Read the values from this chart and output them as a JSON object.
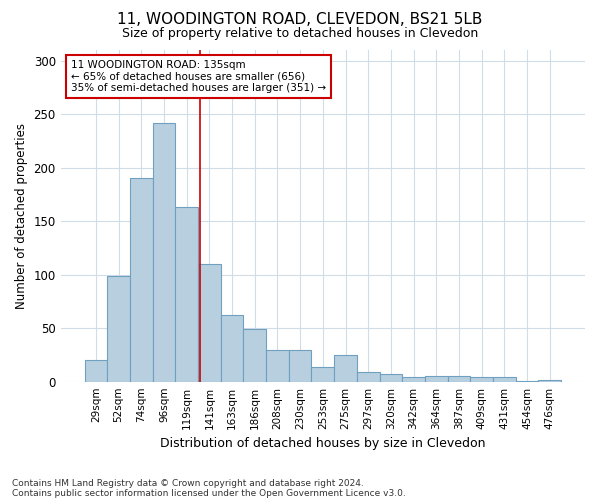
{
  "title_line1": "11, WOODINGTON ROAD, CLEVEDON, BS21 5LB",
  "title_line2": "Size of property relative to detached houses in Clevedon",
  "xlabel": "Distribution of detached houses by size in Clevedon",
  "ylabel": "Number of detached properties",
  "categories": [
    "29sqm",
    "52sqm",
    "74sqm",
    "96sqm",
    "119sqm",
    "141sqm",
    "163sqm",
    "186sqm",
    "208sqm",
    "230sqm",
    "253sqm",
    "275sqm",
    "297sqm",
    "320sqm",
    "342sqm",
    "364sqm",
    "387sqm",
    "409sqm",
    "431sqm",
    "454sqm",
    "476sqm"
  ],
  "values": [
    20,
    99,
    190,
    242,
    163,
    110,
    62,
    49,
    30,
    30,
    14,
    25,
    9,
    7,
    4,
    5,
    5,
    4,
    4,
    1,
    2
  ],
  "bar_color": "#b8cfe0",
  "bar_edge_color": "#6fa0c0",
  "red_line_x": 4.57,
  "annotation_title": "11 WOODINGTON ROAD: 135sqm",
  "annotation_line1": "← 65% of detached houses are smaller (656)",
  "annotation_line2": "35% of semi-detached houses are larger (351) →",
  "annotation_box_facecolor": "#ffffff",
  "annotation_box_edgecolor": "#cc0000",
  "red_line_color": "#cc0000",
  "background_color": "#ffffff",
  "grid_color": "#d0dce8",
  "footnote1": "Contains HM Land Registry data © Crown copyright and database right 2024.",
  "footnote2": "Contains public sector information licensed under the Open Government Licence v3.0.",
  "ylim": [
    0,
    310
  ],
  "yticks": [
    0,
    50,
    100,
    150,
    200,
    250,
    300
  ]
}
